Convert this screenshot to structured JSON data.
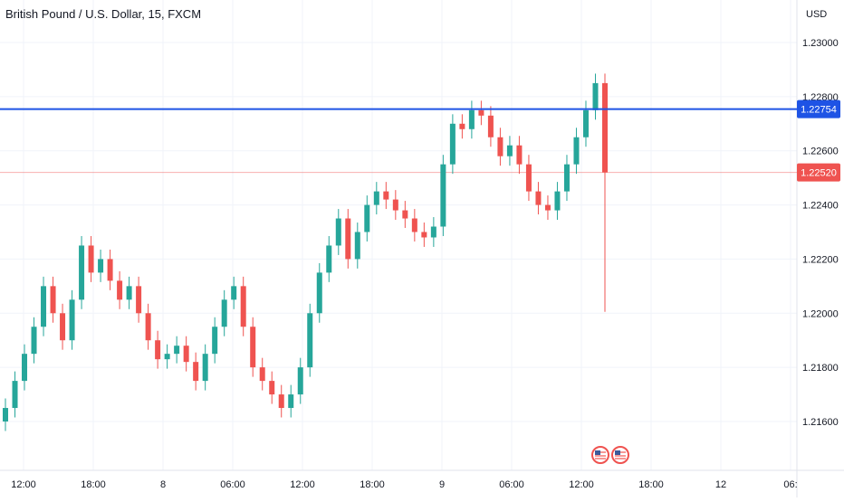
{
  "header": {
    "title": "British Pound / U.S. Dollar, 15, FXCM"
  },
  "chart_data": {
    "type": "candlestick",
    "title": "British Pound / U.S. Dollar, 15, FXCM",
    "y_axis_unit": "USD",
    "y_ticks": [
      "1.23000",
      "1.22800",
      "1.22600",
      "1.22400",
      "1.22200",
      "1.22000",
      "1.21800",
      "1.21600"
    ],
    "x_ticks": [
      "12:00",
      "18:00",
      "8",
      "06:00",
      "12:00",
      "18:00",
      "9",
      "06:00",
      "12:00",
      "18:00",
      "12",
      "06:"
    ],
    "grid": true,
    "horizontal_line": {
      "value": 1.22754,
      "label": "1.22754",
      "color": "#1e53e5"
    },
    "last_price": {
      "value": 1.2252,
      "label": "1.22520",
      "color": "#ef5350"
    },
    "up_color": "#26a69a",
    "down_color": "#ef5350",
    "event_markers": [
      {
        "icon": "us-flag-icon"
      },
      {
        "icon": "us-flag-icon"
      }
    ],
    "candles_approx_close": [
      1.2165,
      1.2175,
      1.2185,
      1.2195,
      1.221,
      1.22,
      1.219,
      1.2205,
      1.2225,
      1.2215,
      1.222,
      1.2212,
      1.2205,
      1.221,
      1.22,
      1.219,
      1.2183,
      1.2185,
      1.2188,
      1.2182,
      1.2175,
      1.2185,
      1.2195,
      1.2205,
      1.221,
      1.2195,
      1.218,
      1.2175,
      1.217,
      1.2165,
      1.217,
      1.218,
      1.22,
      1.2215,
      1.2225,
      1.2235,
      1.222,
      1.223,
      1.224,
      1.2245,
      1.2242,
      1.2238,
      1.2235,
      1.223,
      1.2228,
      1.2232,
      1.2255,
      1.227,
      1.2268,
      1.2275,
      1.2273,
      1.2265,
      1.2258,
      1.2262,
      1.2255,
      1.2245,
      1.224,
      1.2238,
      1.2245,
      1.2255,
      1.2265,
      1.2275,
      1.2285,
      1.2252
    ]
  }
}
